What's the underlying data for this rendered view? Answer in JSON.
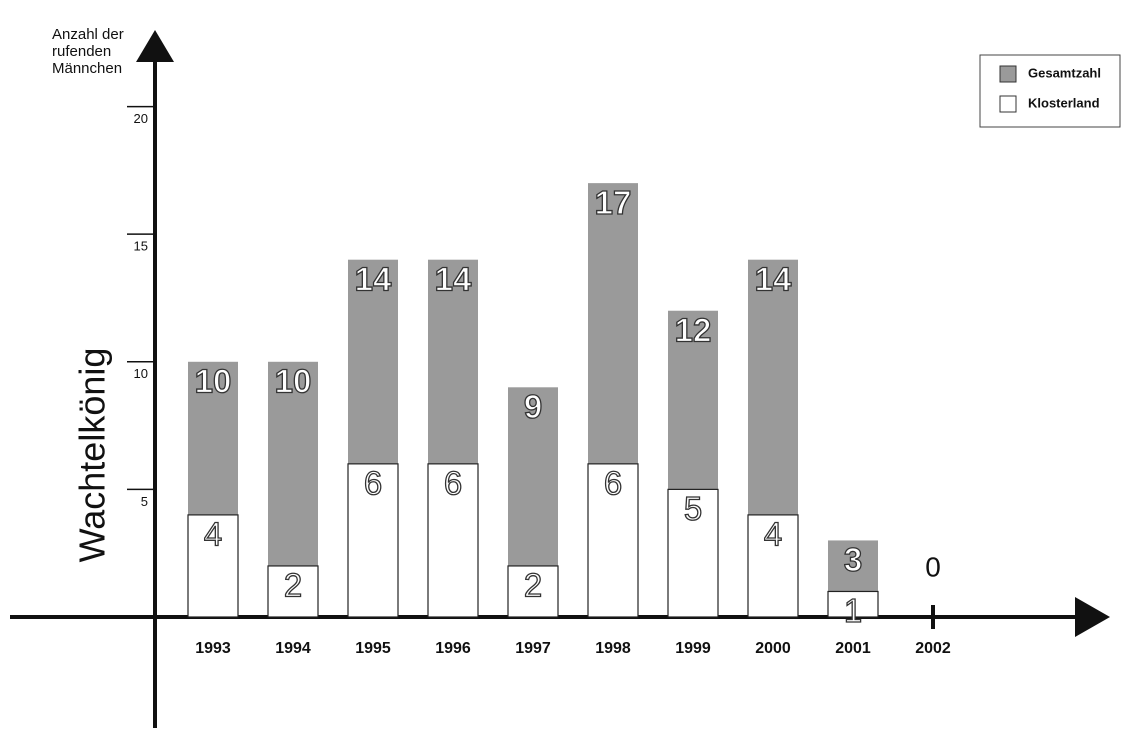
{
  "chart_data": {
    "type": "bar",
    "title": "Wachtelkönig",
    "ylabel": "Anzahl der rufenden Männchen",
    "categories": [
      "1993",
      "1994",
      "1995",
      "1996",
      "1997",
      "1998",
      "1999",
      "2000",
      "2001",
      "2002"
    ],
    "series": [
      {
        "name": "Gesamtzahl",
        "color": "#9a9a9a",
        "values": [
          10,
          10,
          14,
          14,
          9,
          17,
          12,
          14,
          3,
          0
        ]
      },
      {
        "name": "Klosterland",
        "color": "#ffffff",
        "values": [
          4,
          2,
          6,
          6,
          2,
          6,
          5,
          4,
          1,
          null
        ]
      }
    ],
    "ylim": [
      0,
      23
    ],
    "yticks": [
      5,
      10,
      15,
      20
    ],
    "legend": "upper right"
  }
}
